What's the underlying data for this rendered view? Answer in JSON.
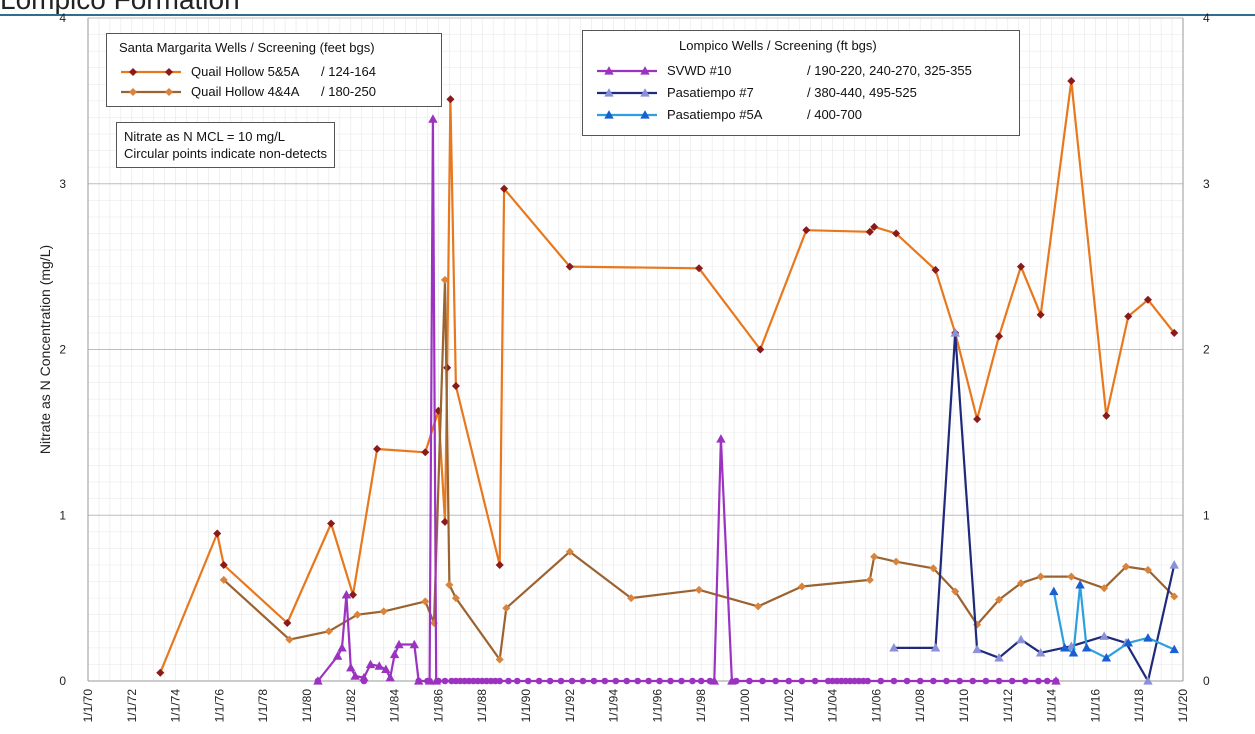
{
  "header": {
    "title": "Lompico Formation"
  },
  "note": {
    "lines": [
      "Nitrate as N MCL = 10 mg/L",
      "Circular points indicate non-detects"
    ]
  },
  "chart_data": {
    "type": "line",
    "title": "",
    "ylabel": "Nitrate as N Concentration (mg/L)",
    "xlabel": "",
    "ylim": [
      0,
      4
    ],
    "xlim": [
      1970,
      2020
    ],
    "yticks": [
      "0",
      "1",
      "2",
      "3",
      "4"
    ],
    "xticks": [
      "1/1/70",
      "1/1/72",
      "1/1/74",
      "1/1/76",
      "1/1/78",
      "1/1/80",
      "1/1/82",
      "1/1/84",
      "1/1/86",
      "1/1/88",
      "1/1/90",
      "1/1/92",
      "1/1/94",
      "1/1/96",
      "1/1/98",
      "1/1/00",
      "1/1/02",
      "1/1/04",
      "1/1/06",
      "1/1/08",
      "1/1/10",
      "1/1/12",
      "1/1/14",
      "1/1/16",
      "1/1/18",
      "1/1/20"
    ],
    "grid": true,
    "legend_groups": [
      {
        "title": "Santa Margarita Wells / Screening (feet bgs)",
        "placement": "top-left",
        "series": [
          0,
          1
        ]
      },
      {
        "title": "Lompico Wells / Screening (ft bgs)",
        "placement": "top-center",
        "series": [
          2,
          3,
          4
        ]
      }
    ],
    "series": [
      {
        "name": "Quail Hollow 5&5A",
        "screening": "/ 124-164",
        "color": "#e8781e",
        "marker_color": "#8b1a1a",
        "marker": "diamond",
        "points": [
          [
            1973.3,
            0.05
          ],
          [
            1975.9,
            0.89
          ],
          [
            1976.2,
            0.7
          ],
          [
            1979.1,
            0.35
          ],
          [
            1981.1,
            0.95
          ],
          [
            1982.1,
            0.52
          ],
          [
            1983.2,
            1.4
          ],
          [
            1985.4,
            1.38
          ],
          [
            1986.0,
            1.63
          ],
          [
            1986.3,
            0.96
          ],
          [
            1986.4,
            1.89
          ],
          [
            1986.55,
            3.51
          ],
          [
            1986.8,
            1.78
          ],
          [
            1988.8,
            0.7
          ],
          [
            1989.0,
            2.97
          ],
          [
            1992.0,
            2.5
          ],
          [
            1997.9,
            2.49
          ],
          [
            2000.7,
            2.0
          ],
          [
            2002.8,
            2.72
          ],
          [
            2005.7,
            2.71
          ],
          [
            2005.9,
            2.74
          ],
          [
            2006.9,
            2.7
          ],
          [
            2008.7,
            2.48
          ],
          [
            2009.6,
            2.1
          ],
          [
            2010.6,
            1.58
          ],
          [
            2011.6,
            2.08
          ],
          [
            2012.6,
            2.5
          ],
          [
            2013.5,
            2.21
          ],
          [
            2014.9,
            3.62
          ],
          [
            2016.5,
            1.6
          ],
          [
            2017.5,
            2.2
          ],
          [
            2018.4,
            2.3
          ],
          [
            2019.6,
            2.1
          ]
        ]
      },
      {
        "name": "Quail Hollow 4&4A",
        "screening": "/ 180-250",
        "color": "#9b6330",
        "marker_color": "#d8843c",
        "marker": "diamond",
        "points": [
          [
            1976.2,
            0.61
          ],
          [
            1979.2,
            0.25
          ],
          [
            1981.0,
            0.3
          ],
          [
            1982.3,
            0.4
          ],
          [
            1983.5,
            0.42
          ],
          [
            1985.4,
            0.48
          ],
          [
            1985.8,
            0.35
          ],
          [
            1986.3,
            2.42
          ],
          [
            1986.5,
            0.58
          ],
          [
            1986.8,
            0.5
          ],
          [
            1988.8,
            0.13
          ],
          [
            1989.1,
            0.44
          ],
          [
            1992.0,
            0.78
          ],
          [
            1994.8,
            0.5
          ],
          [
            1997.9,
            0.55
          ],
          [
            2000.6,
            0.45
          ],
          [
            2002.6,
            0.57
          ],
          [
            2005.7,
            0.61
          ],
          [
            2005.9,
            0.75
          ],
          [
            2006.9,
            0.72
          ],
          [
            2008.6,
            0.68
          ],
          [
            2009.6,
            0.54
          ],
          [
            2010.6,
            0.34
          ],
          [
            2011.6,
            0.49
          ],
          [
            2012.6,
            0.59
          ],
          [
            2013.5,
            0.63
          ],
          [
            2014.9,
            0.63
          ],
          [
            2016.4,
            0.56
          ],
          [
            2017.4,
            0.69
          ],
          [
            2018.4,
            0.67
          ],
          [
            2019.6,
            0.51
          ]
        ]
      },
      {
        "name": "SVWD #10",
        "screening": "/ 190-220, 240-270, 325-355",
        "color": "#9b33c0",
        "marker_color": "#9b33c0",
        "marker": "triangle",
        "points": [
          [
            1980.5,
            0.0
          ],
          [
            1981.4,
            0.15
          ],
          [
            1981.6,
            0.2
          ],
          [
            1981.8,
            0.52
          ],
          [
            1982.0,
            0.08
          ],
          [
            1982.2,
            0.03
          ],
          [
            1982.6,
            0.02
          ],
          [
            1982.9,
            0.1
          ],
          [
            1983.3,
            0.09
          ],
          [
            1983.6,
            0.07
          ],
          [
            1983.8,
            0.02
          ],
          [
            1984.0,
            0.16
          ],
          [
            1984.2,
            0.22
          ],
          [
            1984.9,
            0.22
          ],
          [
            1985.1,
            0.0
          ],
          [
            1985.6,
            0.0
          ],
          [
            1985.75,
            3.39
          ],
          [
            1985.9,
            0.0
          ],
          [
            1998.6,
            0.0
          ],
          [
            1998.9,
            1.46
          ],
          [
            1999.4,
            0.0
          ],
          [
            2014.2,
            0.0
          ]
        ],
        "nondetect_x": [
          1980.5,
          1982.6,
          1985.1,
          1985.5,
          1985.6,
          1986.0,
          1986.3,
          1986.6,
          1986.8,
          1987.0,
          1987.2,
          1987.4,
          1987.6,
          1987.8,
          1988.0,
          1988.2,
          1988.4,
          1988.6,
          1988.8,
          1989.2,
          1989.6,
          1990.1,
          1990.6,
          1991.1,
          1991.6,
          1992.1,
          1992.6,
          1993.1,
          1993.6,
          1994.1,
          1994.6,
          1995.1,
          1995.6,
          1996.1,
          1996.6,
          1997.1,
          1997.6,
          1998.0,
          1998.4,
          1999.6,
          2000.2,
          2000.8,
          2001.4,
          2002.0,
          2002.6,
          2003.2,
          2003.8,
          2004.0,
          2004.2,
          2004.4,
          2004.6,
          2004.8,
          2005.0,
          2005.2,
          2005.4,
          2005.6,
          2006.2,
          2006.8,
          2007.4,
          2008.0,
          2008.6,
          2009.2,
          2009.8,
          2010.4,
          2011.0,
          2011.6,
          2012.2,
          2012.8,
          2013.4,
          2013.8,
          2014.2
        ]
      },
      {
        "name": "Pasatiempo #7",
        "screening": "/ 380-440, 495-525",
        "color": "#1f2a7a",
        "marker_color": "#8a91d8",
        "marker": "triangle",
        "points": [
          [
            2006.8,
            0.2
          ],
          [
            2008.7,
            0.2
          ],
          [
            2009.6,
            2.1
          ],
          [
            2010.6,
            0.19
          ],
          [
            2011.6,
            0.14
          ],
          [
            2012.6,
            0.25
          ],
          [
            2013.5,
            0.17
          ],
          [
            2014.9,
            0.21
          ],
          [
            2016.4,
            0.27
          ],
          [
            2017.4,
            0.23
          ],
          [
            2018.4,
            0.0
          ],
          [
            2019.6,
            0.7
          ]
        ]
      },
      {
        "name": "Pasatiempo #5A",
        "screening": "/ 400-700",
        "color": "#2d9fe0",
        "marker_color": "#1a5fd0",
        "marker": "triangle",
        "points": [
          [
            2014.1,
            0.54
          ],
          [
            2014.6,
            0.2
          ],
          [
            2015.0,
            0.17
          ],
          [
            2015.3,
            0.58
          ],
          [
            2015.6,
            0.2
          ],
          [
            2016.5,
            0.14
          ],
          [
            2017.5,
            0.23
          ],
          [
            2018.4,
            0.26
          ],
          [
            2019.6,
            0.19
          ]
        ]
      }
    ]
  }
}
